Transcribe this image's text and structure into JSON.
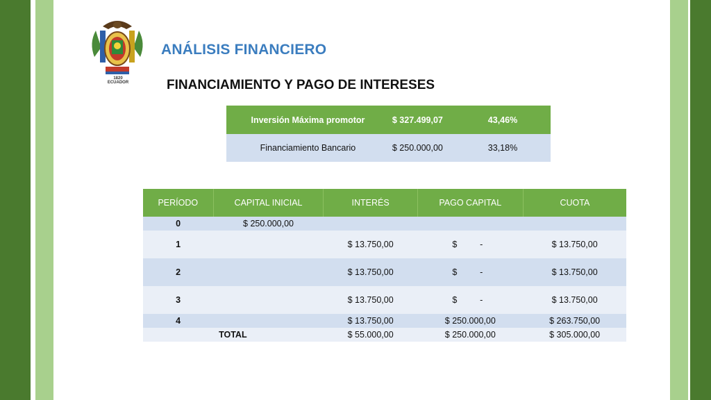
{
  "title": "ANÁLISIS FINANCIERO",
  "subtitle": "FINANCIAMIENTO Y PAGO DE INTERESES",
  "crest": {
    "year": "1820",
    "country": "ECUADOR"
  },
  "summary": [
    {
      "label": "Inversión Máxima promotor",
      "amount": "$ 327.499,07",
      "percent": "43,46%"
    },
    {
      "label": "Financiamiento Bancario",
      "amount": "$ 250.000,00",
      "percent": "33,18%"
    }
  ],
  "schedule": {
    "headers": {
      "periodo": "PERÍODO",
      "capital": "CAPITAL INICIAL",
      "interes": "INTERÉS",
      "pago": "PAGO CAPITAL",
      "cuota": "CUOTA"
    },
    "rows": [
      {
        "periodo": "0",
        "capital": "$ 250.000,00",
        "interes": "",
        "pago_sym": "",
        "pago_val": "",
        "cuota": ""
      },
      {
        "periodo": "1",
        "capital": "",
        "interes": "$ 13.750,00",
        "pago_sym": "$",
        "pago_val": "-",
        "cuota": "$ 13.750,00"
      },
      {
        "periodo": "2",
        "capital": "",
        "interes": "$ 13.750,00",
        "pago_sym": "$",
        "pago_val": "-",
        "cuota": "$ 13.750,00"
      },
      {
        "periodo": "3",
        "capital": "",
        "interes": "$ 13.750,00",
        "pago_sym": "$",
        "pago_val": "-",
        "cuota": "$ 13.750,00"
      },
      {
        "periodo": "4",
        "capital": "",
        "interes": "$ 13.750,00",
        "pago": "$ 250.000,00",
        "cuota": "$ 263.750,00"
      }
    ],
    "total": {
      "label": "TOTAL",
      "interes": "$ 55.000,00",
      "pago": "$ 250.000,00",
      "cuota": "$ 305.000,00"
    }
  },
  "colors": {
    "header_green": "#70ad47",
    "row_blue": "#d2deef",
    "title_blue": "#3b7dbf",
    "dark_green": "#4a7a2e",
    "light_green": "#a8d08d"
  }
}
